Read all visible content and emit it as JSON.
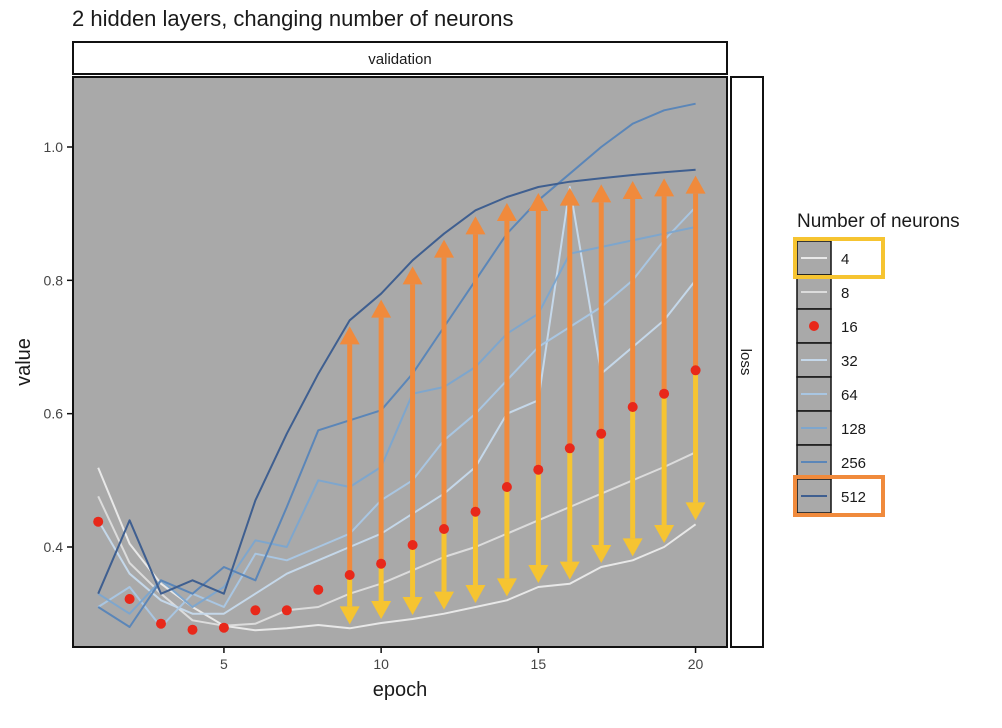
{
  "chart_data": {
    "type": "line",
    "title": "2 hidden layers, changing number of neurons",
    "facet_top": "validation",
    "facet_right": "loss",
    "xlabel": "epoch",
    "ylabel": "value",
    "xlim": [
      0.2,
      21
    ],
    "ylim": [
      0.25,
      1.105
    ],
    "x_ticks": [
      5,
      10,
      15,
      20
    ],
    "y_ticks": [
      0.4,
      0.6,
      0.8,
      1.0
    ],
    "y_tick_labels": [
      "0.4",
      "0.6",
      "0.8",
      "1.0"
    ],
    "grid": false,
    "panel_background": "#a9a9a9",
    "legend": {
      "title": "Number of neurons",
      "position": "right"
    },
    "x": [
      1,
      2,
      3,
      4,
      5,
      6,
      7,
      8,
      9,
      10,
      11,
      12,
      13,
      14,
      15,
      16,
      17,
      18,
      19,
      20
    ],
    "series": [
      {
        "name": "4",
        "color": "#e8e8e8",
        "values": [
          0.519,
          0.405,
          0.345,
          0.31,
          0.282,
          0.275,
          0.278,
          0.283,
          0.278,
          0.286,
          0.292,
          0.3,
          0.31,
          0.32,
          0.34,
          0.345,
          0.37,
          0.38,
          0.4,
          0.434
        ]
      },
      {
        "name": "8",
        "color": "#dcdcdc",
        "values": [
          0.476,
          0.376,
          0.33,
          0.29,
          0.282,
          0.285,
          0.305,
          0.31,
          0.33,
          0.345,
          0.365,
          0.385,
          0.4,
          0.42,
          0.44,
          0.46,
          0.48,
          0.5,
          0.52,
          0.542
        ]
      },
      {
        "name": "16",
        "color": "#ffffff",
        "marker": "#e8281a",
        "values": [
          0.438,
          0.322,
          0.285,
          0.276,
          0.279,
          0.305,
          0.305,
          0.336,
          0.358,
          0.375,
          0.403,
          0.427,
          0.453,
          0.49,
          0.516,
          0.548,
          0.57,
          0.61,
          0.63,
          0.665
        ]
      },
      {
        "name": "32",
        "color": "#c5d8ea",
        "values": [
          0.44,
          0.36,
          0.32,
          0.3,
          0.3,
          0.33,
          0.36,
          0.38,
          0.4,
          0.42,
          0.45,
          0.48,
          0.52,
          0.6,
          0.62,
          0.94,
          0.66,
          0.7,
          0.74,
          0.8
        ]
      },
      {
        "name": "64",
        "color": "#a9c6e2",
        "values": [
          0.31,
          0.34,
          0.28,
          0.33,
          0.31,
          0.39,
          0.38,
          0.4,
          0.42,
          0.47,
          0.5,
          0.56,
          0.6,
          0.65,
          0.7,
          0.73,
          0.76,
          0.8,
          0.86,
          0.91
        ]
      },
      {
        "name": "128",
        "color": "#7ea6cd",
        "values": [
          0.33,
          0.3,
          0.35,
          0.31,
          0.34,
          0.41,
          0.4,
          0.5,
          0.49,
          0.52,
          0.63,
          0.64,
          0.67,
          0.72,
          0.75,
          0.84,
          0.85,
          0.86,
          0.87,
          0.88
        ]
      },
      {
        "name": "256",
        "color": "#5b86b8",
        "values": [
          0.31,
          0.28,
          0.35,
          0.33,
          0.37,
          0.35,
          0.46,
          0.575,
          0.59,
          0.605,
          0.66,
          0.73,
          0.8,
          0.87,
          0.92,
          0.96,
          1.0,
          1.035,
          1.055,
          1.065
        ]
      },
      {
        "name": "512",
        "color": "#3f5f90",
        "values": [
          0.33,
          0.44,
          0.33,
          0.35,
          0.33,
          0.47,
          0.57,
          0.66,
          0.74,
          0.78,
          0.83,
          0.87,
          0.905,
          0.925,
          0.94,
          0.948,
          0.953,
          0.958,
          0.962,
          0.966
        ]
      }
    ],
    "annotations": {
      "highlight_colors": {
        "series_4": "#f6c431",
        "series_512": "#f08a3c"
      },
      "arrow_x": [
        9,
        10,
        11,
        12,
        13,
        14,
        15,
        16,
        17,
        18,
        19,
        20
      ],
      "up_arrow_color": "#f08a3c",
      "down_arrow_color": "#f6c431"
    }
  }
}
